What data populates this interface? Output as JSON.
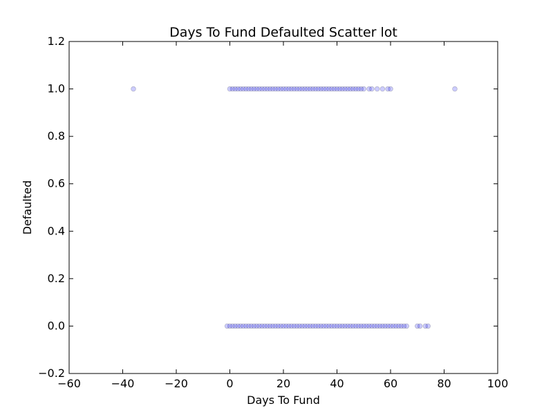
{
  "chart_data": {
    "type": "scatter",
    "title": "Days To Fund Defaulted Scatter lot",
    "xlabel": "Days To Fund",
    "ylabel": "Defaulted",
    "xlim": [
      -60,
      100
    ],
    "ylim": [
      -0.2,
      1.2
    ],
    "xticks": [
      -60,
      -40,
      -20,
      0,
      20,
      40,
      60,
      80,
      100
    ],
    "xtick_labels": [
      "−60",
      "−40",
      "−20",
      "0",
      "20",
      "40",
      "60",
      "80",
      "100"
    ],
    "yticks": [
      -0.2,
      0.0,
      0.2,
      0.4,
      0.6,
      0.8,
      1.0,
      1.2
    ],
    "ytick_labels": [
      "−0.2",
      "0.0",
      "0.2",
      "0.4",
      "0.6",
      "0.8",
      "1.0",
      "1.2"
    ],
    "grid": false,
    "marker_color": "#0000ff",
    "marker_alpha": 0.2,
    "series": [
      {
        "x": [
          -36,
          0,
          1,
          2,
          3,
          4,
          5,
          6,
          7,
          8,
          9,
          10,
          11,
          12,
          13,
          14,
          15,
          16,
          17,
          18,
          19,
          20,
          21,
          22,
          23,
          24,
          25,
          26,
          27,
          28,
          29,
          30,
          31,
          32,
          33,
          34,
          35,
          36,
          37,
          38,
          39,
          40,
          41,
          42,
          43,
          44,
          45,
          46,
          47,
          48,
          49,
          50,
          52,
          53,
          55,
          57,
          59,
          60,
          84
        ],
        "y": [
          1,
          1,
          1,
          1,
          1,
          1,
          1,
          1,
          1,
          1,
          1,
          1,
          1,
          1,
          1,
          1,
          1,
          1,
          1,
          1,
          1,
          1,
          1,
          1,
          1,
          1,
          1,
          1,
          1,
          1,
          1,
          1,
          1,
          1,
          1,
          1,
          1,
          1,
          1,
          1,
          1,
          1,
          1,
          1,
          1,
          1,
          1,
          1,
          1,
          1,
          1,
          1,
          1,
          1,
          1,
          1,
          1,
          1,
          1
        ]
      },
      {
        "x": [
          -1,
          0,
          1,
          2,
          3,
          4,
          5,
          6,
          7,
          8,
          9,
          10,
          11,
          12,
          13,
          14,
          15,
          16,
          17,
          18,
          19,
          20,
          21,
          22,
          23,
          24,
          25,
          26,
          27,
          28,
          29,
          30,
          31,
          32,
          33,
          34,
          35,
          36,
          37,
          38,
          39,
          40,
          41,
          42,
          43,
          44,
          45,
          46,
          47,
          48,
          49,
          50,
          51,
          52,
          53,
          54,
          55,
          56,
          57,
          58,
          59,
          60,
          61,
          62,
          63,
          64,
          65,
          66,
          70,
          71,
          73,
          74
        ],
        "y": [
          0,
          0,
          0,
          0,
          0,
          0,
          0,
          0,
          0,
          0,
          0,
          0,
          0,
          0,
          0,
          0,
          0,
          0,
          0,
          0,
          0,
          0,
          0,
          0,
          0,
          0,
          0,
          0,
          0,
          0,
          0,
          0,
          0,
          0,
          0,
          0,
          0,
          0,
          0,
          0,
          0,
          0,
          0,
          0,
          0,
          0,
          0,
          0,
          0,
          0,
          0,
          0,
          0,
          0,
          0,
          0,
          0,
          0,
          0,
          0,
          0,
          0,
          0,
          0,
          0,
          0,
          0,
          0,
          0,
          0,
          0,
          0
        ]
      }
    ]
  }
}
